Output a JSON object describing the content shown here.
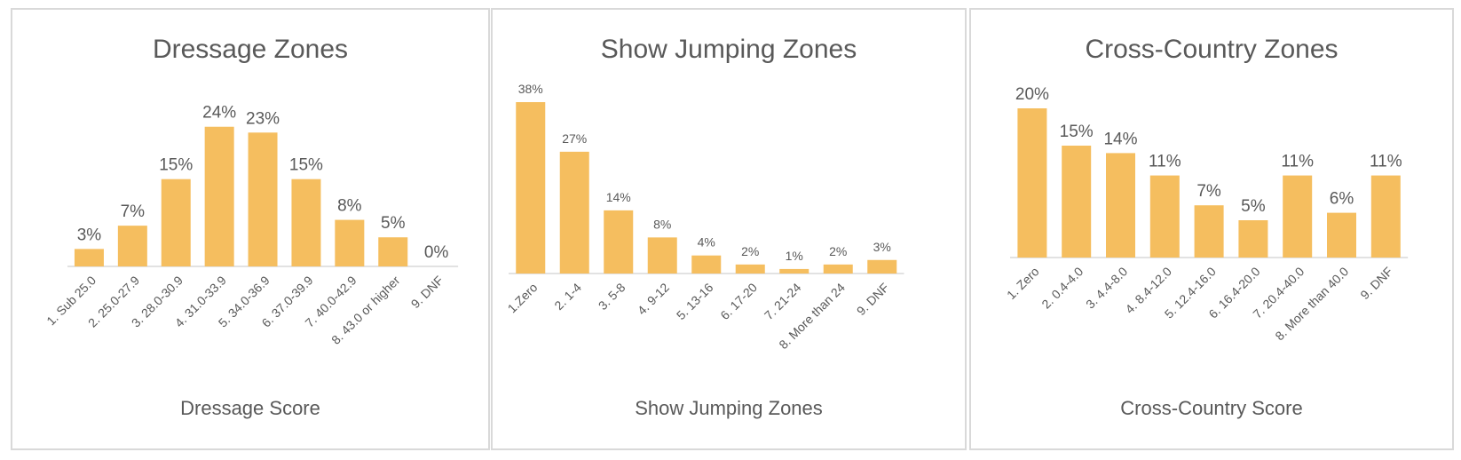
{
  "colors": {
    "bar": "#F5BE5F",
    "axis": "#d9d9d9",
    "text": "#595959"
  },
  "chart_data": [
    {
      "type": "bar",
      "title": "Dressage Zones",
      "xlabel": "Dressage Score",
      "categories": [
        "1. Sub 25.0",
        "2. 25.0-27.9",
        "3. 28.0-30.9",
        "4. 31.0-33.9",
        "5. 34.0-36.9",
        "6. 37.0-39.9",
        "7. 40.0-42.9",
        "8. 43.0 or higher",
        "9. DNF"
      ],
      "values": [
        3,
        7,
        15,
        24,
        23,
        15,
        8,
        5,
        0
      ],
      "data_labels": [
        "3%",
        "7%",
        "15%",
        "24%",
        "23%",
        "15%",
        "8%",
        "5%",
        "0%"
      ],
      "ylim": [
        0,
        38
      ],
      "grid": false
    },
    {
      "type": "bar",
      "title": "Show Jumping Zones",
      "xlabel": "Show Jumping Zones",
      "categories": [
        "1.Zero",
        "2. 1-4",
        "3. 5-8",
        "4. 9-12",
        "5. 13-16",
        "6. 17-20",
        "7. 21-24",
        "8. More than 24",
        "9. DNF"
      ],
      "values": [
        38,
        27,
        14,
        8,
        4,
        2,
        1,
        2,
        3
      ],
      "data_labels": [
        "38%",
        "27%",
        "14%",
        "8%",
        "4%",
        "2%",
        "1%",
        "2%",
        "3%"
      ],
      "ylim": [
        0,
        38
      ],
      "grid": false
    },
    {
      "type": "bar",
      "title": "Cross-Country Zones",
      "xlabel": "Cross-Country Score",
      "categories": [
        "1. Zero",
        "2. 0.4-4.0",
        "3. 4.4-8.0",
        "4. 8.4-12.0",
        "5. 12.4-16.0",
        "6. 16.4-20.0",
        "7. 20.4-40.0",
        "8. More than 40.0",
        "9. DNF"
      ],
      "values": [
        20,
        15,
        14,
        11,
        7,
        5,
        11,
        6,
        11
      ],
      "data_labels": [
        "20%",
        "15%",
        "14%",
        "11%",
        "7%",
        "5%",
        "11%",
        "6%",
        "11%"
      ],
      "ylim": [
        0,
        20
      ],
      "grid": false
    }
  ]
}
